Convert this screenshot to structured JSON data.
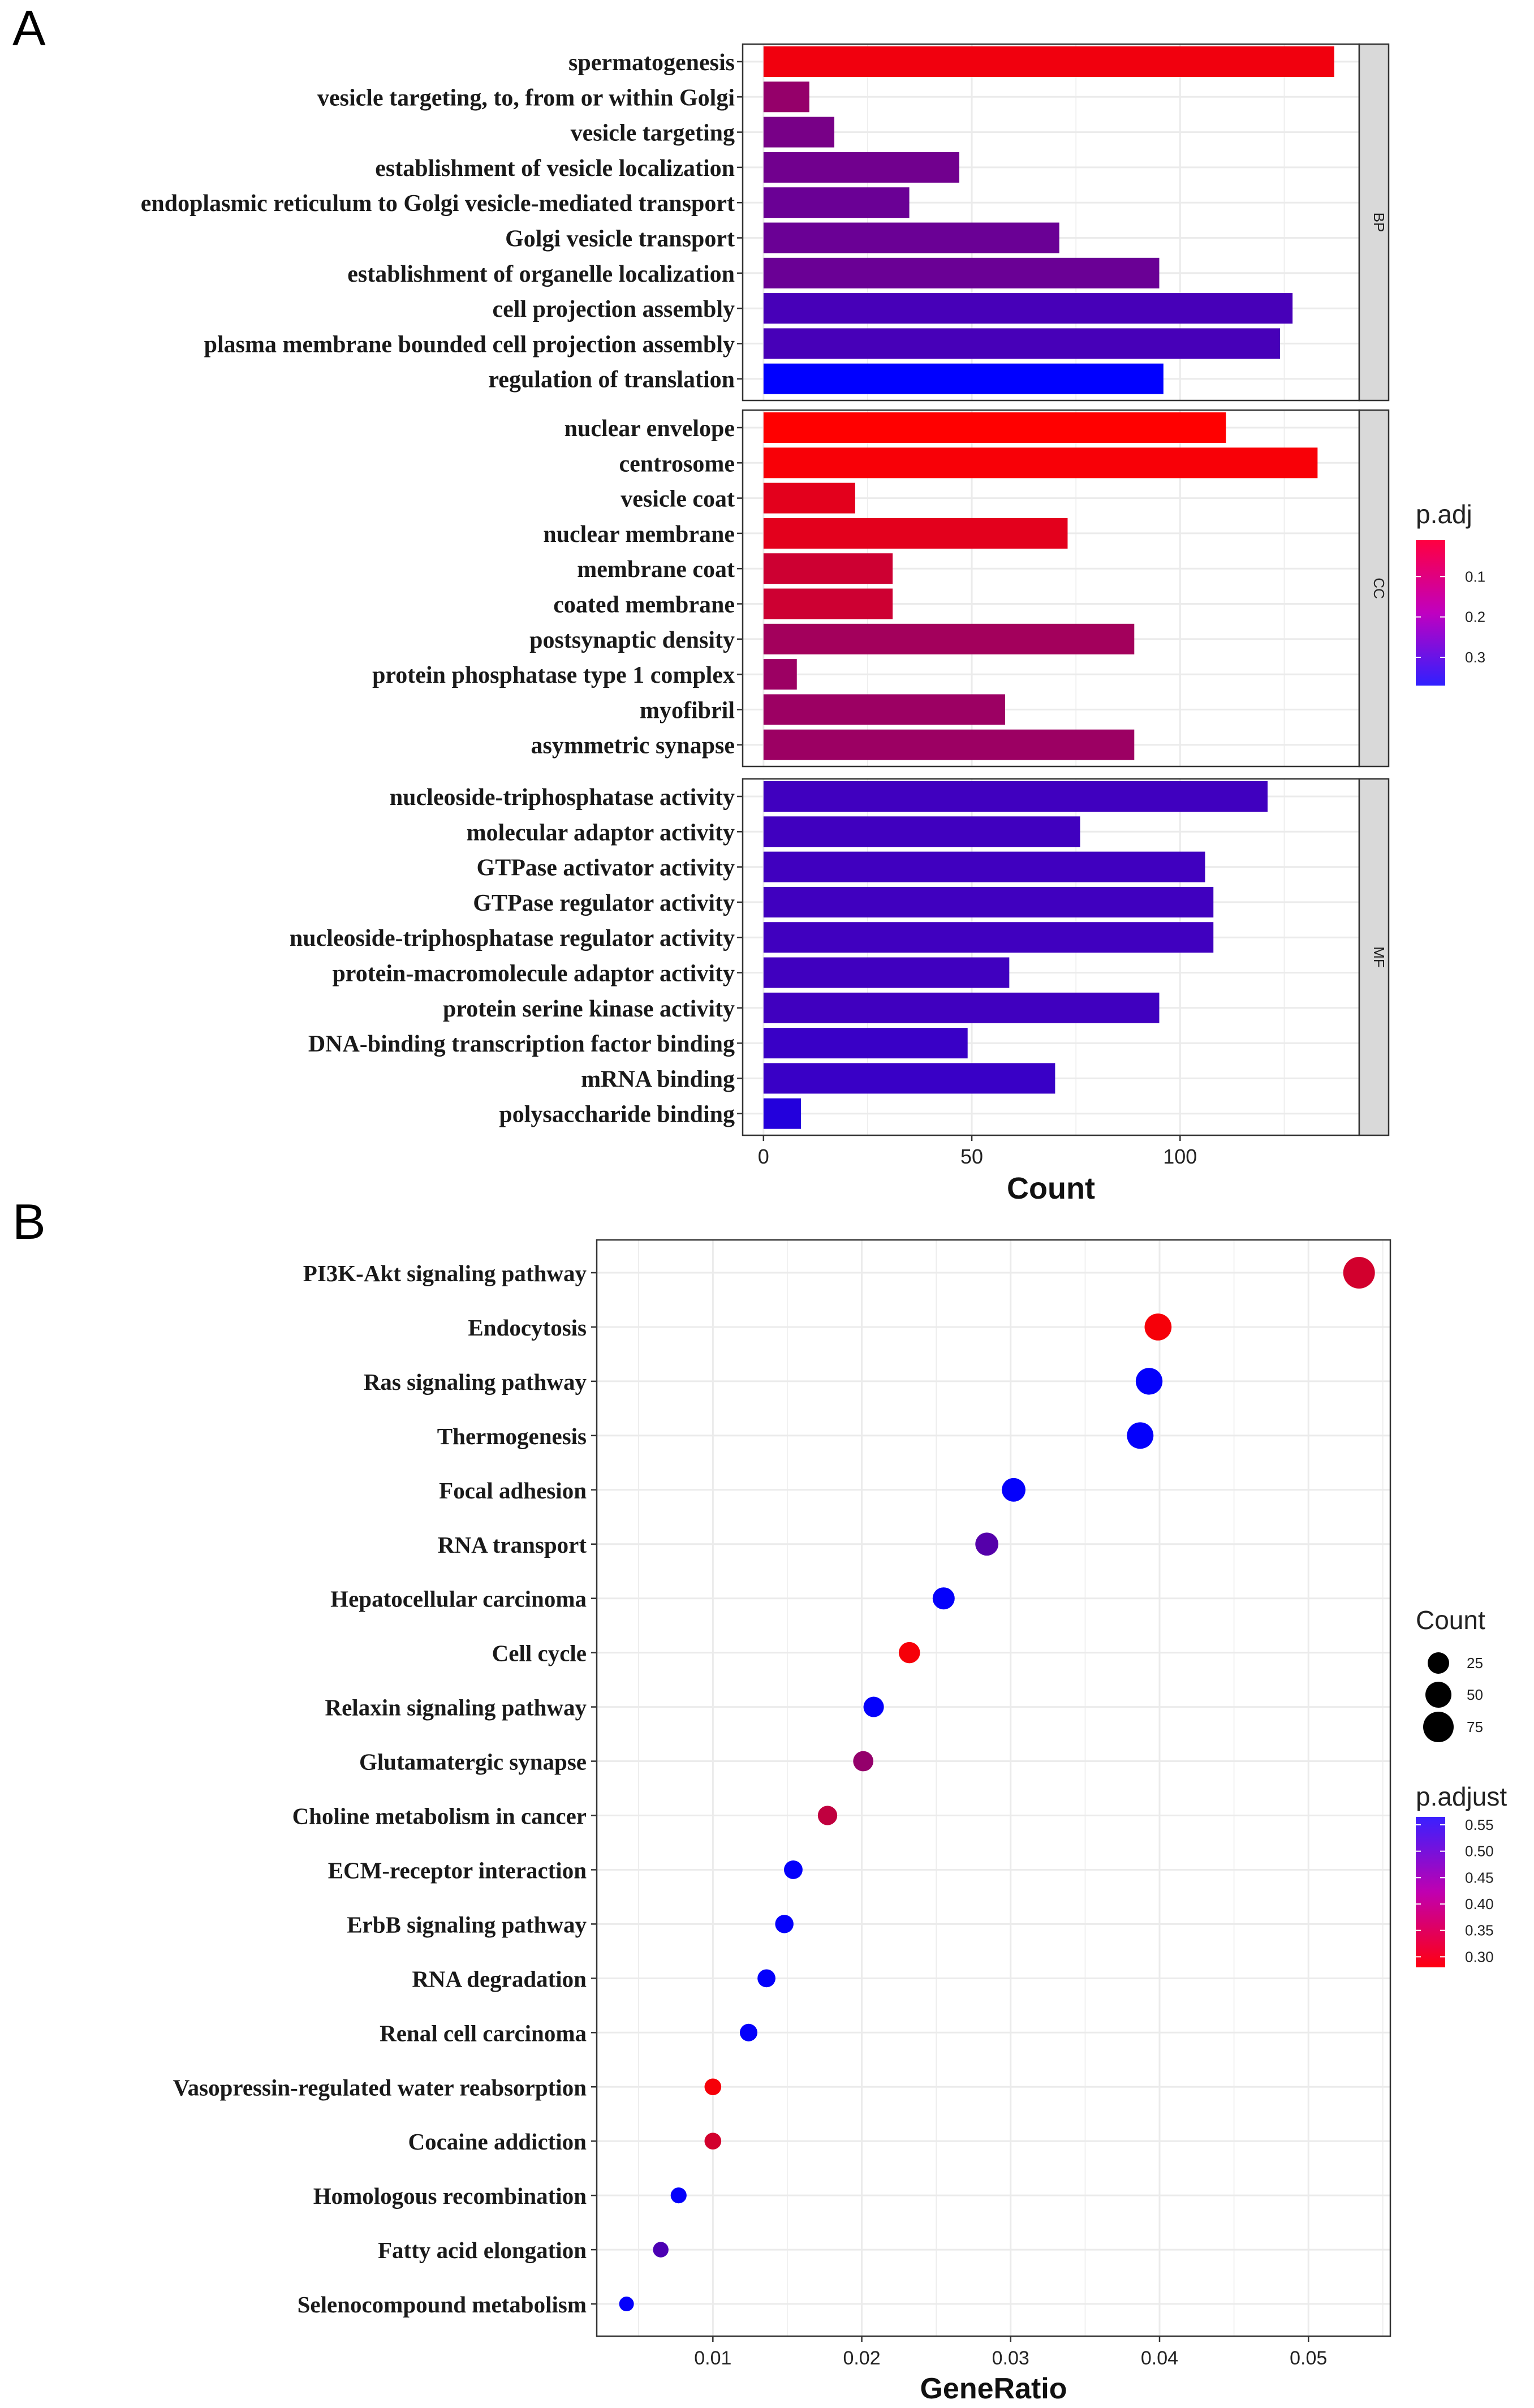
{
  "figure": {
    "panel_a_label": "A",
    "panel_b_label": "B"
  },
  "colors": {
    "high": "#ff0000",
    "low": "#0000ff",
    "grid": "#ebebeb",
    "strip": "#d9d9d9"
  },
  "chart_data": [
    {
      "type": "bar",
      "orientation": "horizontal",
      "title": "",
      "xlabel": "Count",
      "ylabel": "",
      "xlim": [
        -5,
        143
      ],
      "xticks": [
        0,
        50,
        100
      ],
      "grid": true,
      "legend": {
        "title": "p.adj",
        "position": "right",
        "ticks": [
          0.1,
          0.2,
          0.3
        ],
        "tick_labels": [
          "0.1",
          "0.2",
          "0.3"
        ],
        "range": [
          0.01,
          0.37
        ]
      },
      "facets": [
        {
          "name": "BP",
          "categories": [
            "spermatogenesis",
            "vesicle targeting, to, from or within Golgi",
            "vesicle targeting",
            "establishment of vesicle localization",
            "endoplasmic reticulum to Golgi vesicle-mediated transport",
            "Golgi vesicle transport",
            "establishment of organelle localization",
            "cell projection assembly",
            "plasma membrane bounded cell projection assembly",
            "regulation of translation"
          ],
          "values": [
            137,
            11,
            17,
            47,
            35,
            71,
            95,
            127,
            124,
            96
          ],
          "p_adj": [
            0.03,
            0.16,
            0.2,
            0.21,
            0.22,
            0.22,
            0.22,
            0.27,
            0.27,
            0.37
          ]
        },
        {
          "name": "CC",
          "categories": [
            "nuclear envelope",
            "centrosome",
            "vesicle coat",
            "nuclear membrane",
            "membrane coat",
            "coated membrane",
            "postsynaptic density",
            "protein phosphatase type 1 complex",
            "myofibril",
            "asymmetric synapse"
          ],
          "values": [
            111,
            133,
            22,
            73,
            31,
            31,
            89,
            8,
            58,
            89
          ],
          "p_adj": [
            0.01,
            0.02,
            0.05,
            0.05,
            0.08,
            0.08,
            0.14,
            0.15,
            0.15,
            0.15
          ]
        },
        {
          "name": "MF",
          "categories": [
            "nucleoside-triphosphatase activity",
            "molecular adaptor activity",
            "GTPase activator activity",
            "GTPase regulator activity",
            "nucleoside-triphosphatase regulator activity",
            "protein-macromolecule adaptor activity",
            "protein serine kinase activity",
            "DNA-binding transcription factor binding",
            "mRNA binding",
            "polysaccharide binding"
          ],
          "values": [
            121,
            76,
            106,
            108,
            108,
            59,
            95,
            49,
            70,
            9
          ],
          "p_adj": [
            0.28,
            0.28,
            0.28,
            0.28,
            0.28,
            0.28,
            0.28,
            0.29,
            0.29,
            0.32
          ]
        }
      ]
    },
    {
      "type": "scatter",
      "title": "",
      "xlabel": "GeneRatio",
      "ylabel": "",
      "xlim": [
        0.0022,
        0.0555
      ],
      "xticks": [
        0.01,
        0.02,
        0.03,
        0.04,
        0.05
      ],
      "grid": true,
      "categories": [
        "PI3K-Akt signaling pathway",
        "Endocytosis",
        "Ras signaling pathway",
        "Thermogenesis",
        "Focal adhesion",
        "RNA transport",
        "Hepatocellular carcinoma",
        "Cell cycle",
        "Relaxin signaling pathway",
        "Glutamatergic synapse",
        "Choline metabolism in cancer",
        "ECM-receptor interaction",
        "ErbB signaling pathway",
        "RNA degradation",
        "Renal cell carcinoma",
        "Vasopressin-regulated water reabsorption",
        "Cocaine addiction",
        "Homologous recombination",
        "Fatty acid elongation",
        "Selenocompound metabolism"
      ],
      "x": [
        0.0534,
        0.0399,
        0.0393,
        0.0387,
        0.0302,
        0.0284,
        0.0255,
        0.0232,
        0.0208,
        0.0201,
        0.0177,
        0.0154,
        0.0148,
        0.0136,
        0.0124,
        0.01,
        0.01,
        0.0077,
        0.0065,
        0.0042
      ],
      "count": [
        90,
        67,
        66,
        65,
        51,
        48,
        43,
        39,
        35,
        34,
        30,
        26,
        25,
        23,
        21,
        17,
        17,
        13,
        11,
        7
      ],
      "p_adjust": [
        0.33,
        0.29,
        0.56,
        0.56,
        0.56,
        0.47,
        0.56,
        0.29,
        0.56,
        0.4,
        0.35,
        0.56,
        0.56,
        0.56,
        0.56,
        0.29,
        0.33,
        0.56,
        0.48,
        0.56
      ],
      "legend_size": {
        "title": "Count",
        "position": "right",
        "values": [
          25,
          50,
          75
        ],
        "labels": [
          "25",
          "50",
          "75"
        ]
      },
      "legend_color": {
        "title": "p.adjust",
        "position": "right",
        "ticks": [
          0.55,
          0.5,
          0.45,
          0.4,
          0.35,
          0.3
        ],
        "tick_labels": [
          "0.55",
          "0.50",
          "0.45",
          "0.40",
          "0.35",
          "0.30"
        ],
        "range": [
          0.28,
          0.565
        ]
      }
    }
  ]
}
